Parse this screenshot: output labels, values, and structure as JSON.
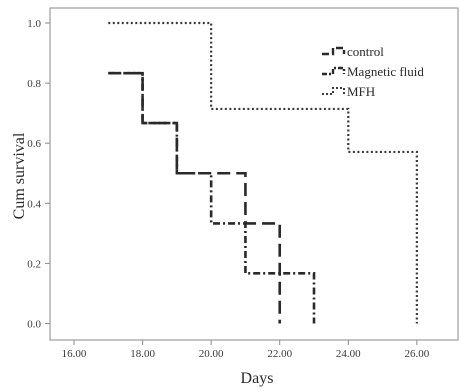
{
  "chart_data": {
    "type": "line",
    "subtype": "kaplan-meier-step",
    "xlabel": "Days",
    "ylabel": "Cum survival",
    "xlim": [
      15.3,
      27.2
    ],
    "ylim": [
      -0.055,
      1.05
    ],
    "x_ticks": [
      16,
      18,
      20,
      22,
      24,
      26
    ],
    "x_tick_labels": [
      "16.00",
      "18.00",
      "20.00",
      "22.00",
      "24.00",
      "26.00"
    ],
    "y_ticks": [
      0,
      0.2,
      0.4,
      0.6,
      0.8,
      1.0
    ],
    "y_tick_labels": [
      "0.0",
      "0.2",
      "0.4",
      "0.6",
      "0.8",
      "1.0"
    ],
    "grid": false,
    "legend_position": "top-right",
    "series": [
      {
        "name": "control",
        "style": "long-dash",
        "x": [
          17,
          18,
          19,
          20,
          21,
          22,
          22
        ],
        "y": [
          0.833,
          0.667,
          0.5,
          0.5,
          0.333,
          0.333,
          0.0
        ]
      },
      {
        "name": "Magnetic fluid",
        "style": "dash-dot",
        "x": [
          17,
          18,
          19,
          20,
          21,
          23,
          23
        ],
        "y": [
          0.833,
          0.667,
          0.5,
          0.333,
          0.167,
          0.167,
          0.0
        ]
      },
      {
        "name": "MFH",
        "style": "dotted",
        "x": [
          17,
          20,
          24,
          26,
          26
        ],
        "y": [
          1.0,
          0.714,
          0.571,
          0.571,
          0.0
        ]
      }
    ]
  }
}
